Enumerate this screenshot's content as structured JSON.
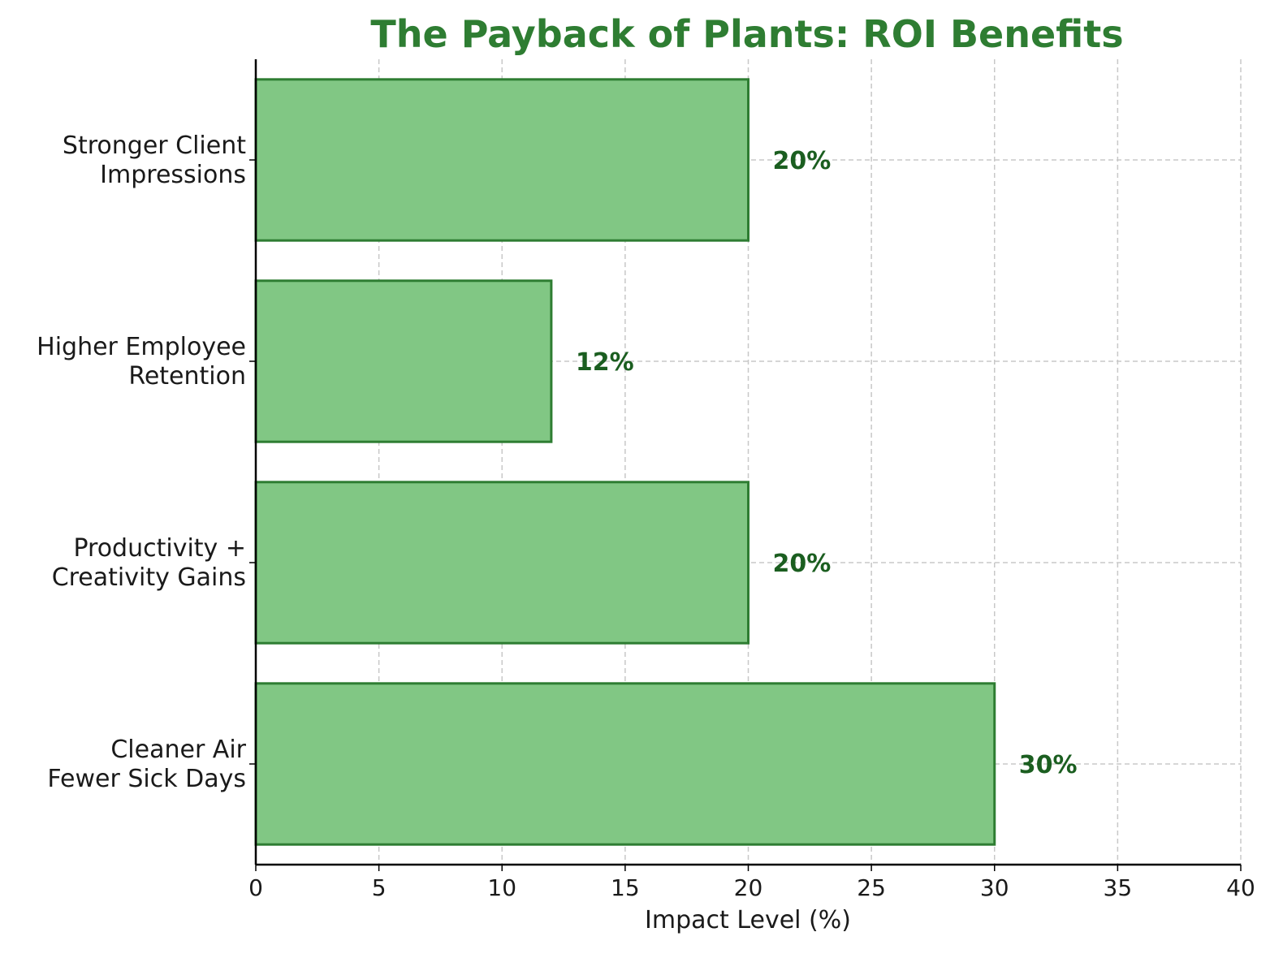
{
  "chart_data": {
    "type": "bar",
    "orientation": "horizontal",
    "title": "The Payback of Plants: ROI Benefits",
    "xlabel": "Impact Level (%)",
    "ylabel": "",
    "xlim": [
      0,
      40
    ],
    "xticks": [
      0,
      5,
      10,
      15,
      20,
      25,
      30,
      35,
      40
    ],
    "grid": true,
    "categories": [
      [
        "Cleaner Air",
        "Fewer Sick Days"
      ],
      [
        "Productivity +",
        "Creativity Gains"
      ],
      [
        "Higher Employee",
        "Retention"
      ],
      [
        "Stronger Client",
        "Impressions"
      ]
    ],
    "values": [
      30,
      20,
      12,
      20
    ],
    "value_labels": [
      "30%",
      "20%",
      "12%",
      "20%"
    ],
    "colors": {
      "bar_fill": "#81c784",
      "bar_edge": "#2e7d32",
      "title": "#2e7d32",
      "value_label": "#1b5e20",
      "grid": "#c8c8c8",
      "axis": "#000000",
      "text": "#1a1a1a"
    }
  }
}
